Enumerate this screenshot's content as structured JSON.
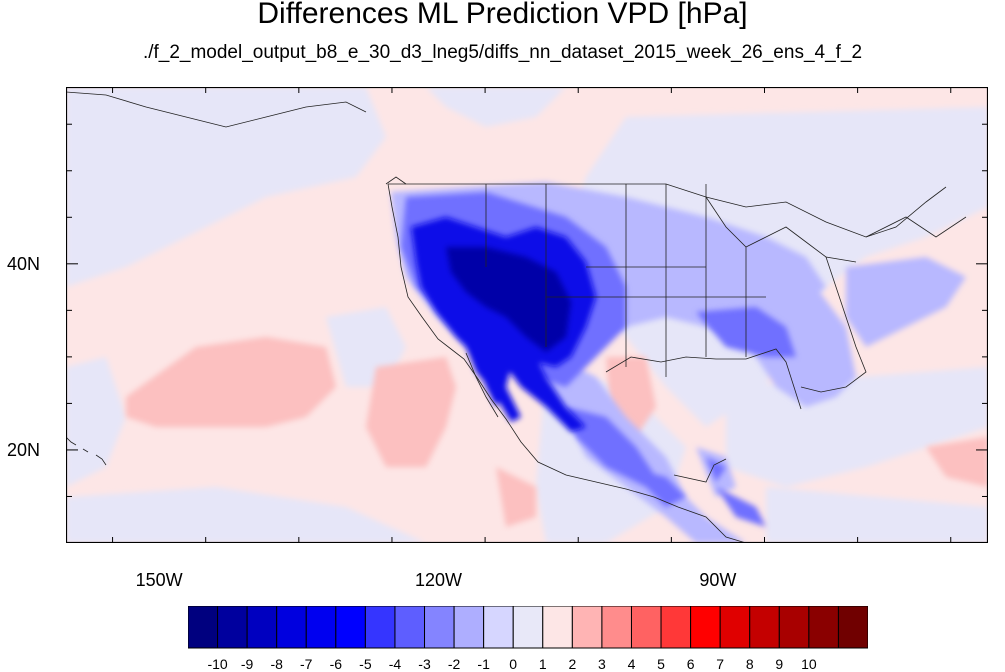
{
  "title": "Differences ML Prediction VPD [hPa]",
  "subtitle": "./f_2_model_output_b8_e_30_d3_lneg5/diffs_nn_dataset_2015_week_26_ens_4_f_2",
  "map": {
    "projection": "cylindrical-equidistant",
    "lon_range": [
      -160,
      -61
    ],
    "lat_range": [
      10,
      59
    ],
    "lat_labels": [
      {
        "value": 40,
        "text": "40N"
      },
      {
        "value": 20,
        "text": "20N"
      }
    ],
    "lon_labels": [
      {
        "value": -150,
        "text": "150W"
      },
      {
        "value": -120,
        "text": "120W"
      },
      {
        "value": -90,
        "text": "90W"
      }
    ],
    "background_color": "#fde6e6"
  },
  "colorbar": {
    "colors": [
      "#00007f",
      "#00009e",
      "#0000c0",
      "#0000df",
      "#0000f0",
      "#0000ff",
      "#3535ff",
      "#5e5eff",
      "#8484ff",
      "#aeaeff",
      "#d6d6ff",
      "#e8e8f8",
      "#fde6e6",
      "#ffb4b4",
      "#ff8c8c",
      "#ff6262",
      "#ff3838",
      "#ff0000",
      "#e00000",
      "#c40000",
      "#a80000",
      "#8a0000",
      "#700000"
    ],
    "labels": [
      "-10",
      "-9",
      "-8",
      "-7",
      "-6",
      "-5",
      "-4",
      "-3",
      "-2",
      "-1",
      "0",
      "1",
      "2",
      "3",
      "4",
      "5",
      "6",
      "7",
      "8",
      "9",
      "10"
    ]
  }
}
